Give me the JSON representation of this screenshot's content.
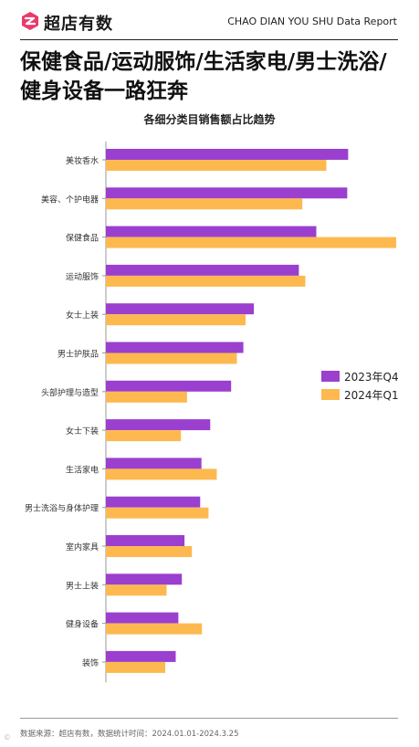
{
  "header": {
    "brand": "超店有数",
    "report_label": "CHAO DIAN YOU SHU Data Report"
  },
  "headline": "保健食品/运动服饰/生活家电/男士洗浴/健身设备一路狂奔",
  "footer": {
    "source": "数据来源：超店有数，数据统计时间：2024.01.01-2024.3.25"
  },
  "colors": {
    "series_2023q4": "#9b3fcf",
    "series_2024q1": "#fdb94f",
    "logo": "#ea3a6a"
  },
  "chart_data": {
    "type": "bar",
    "orientation": "horizontal",
    "title": "各细分类目销售额占比趋势",
    "legend_position": "right",
    "grid": false,
    "xlim": [
      0,
      0.0665
    ],
    "categories": [
      "美妆香水",
      "美容、个护电器",
      "保健食品",
      "运动服饰",
      "女士上装",
      "男士护肤品",
      "头部护理与造型",
      "女士下装",
      "生活家电",
      "男士洗浴与身体护理",
      "室内家具",
      "男士上装",
      "健身设备",
      "装饰"
    ],
    "series": [
      {
        "name": "2023年Q4",
        "values": [
          0.0555,
          0.0553,
          0.0482,
          0.0442,
          0.0339,
          0.0315,
          0.0287,
          0.0239,
          0.0219,
          0.0216,
          0.018,
          0.0174,
          0.0166,
          0.016
        ]
      },
      {
        "name": "2024年Q1",
        "values": [
          0.0505,
          0.045,
          0.0665,
          0.0457,
          0.032,
          0.03,
          0.0186,
          0.0172,
          0.0254,
          0.0235,
          0.0197,
          0.0139,
          0.022,
          0.0136
        ]
      }
    ]
  }
}
